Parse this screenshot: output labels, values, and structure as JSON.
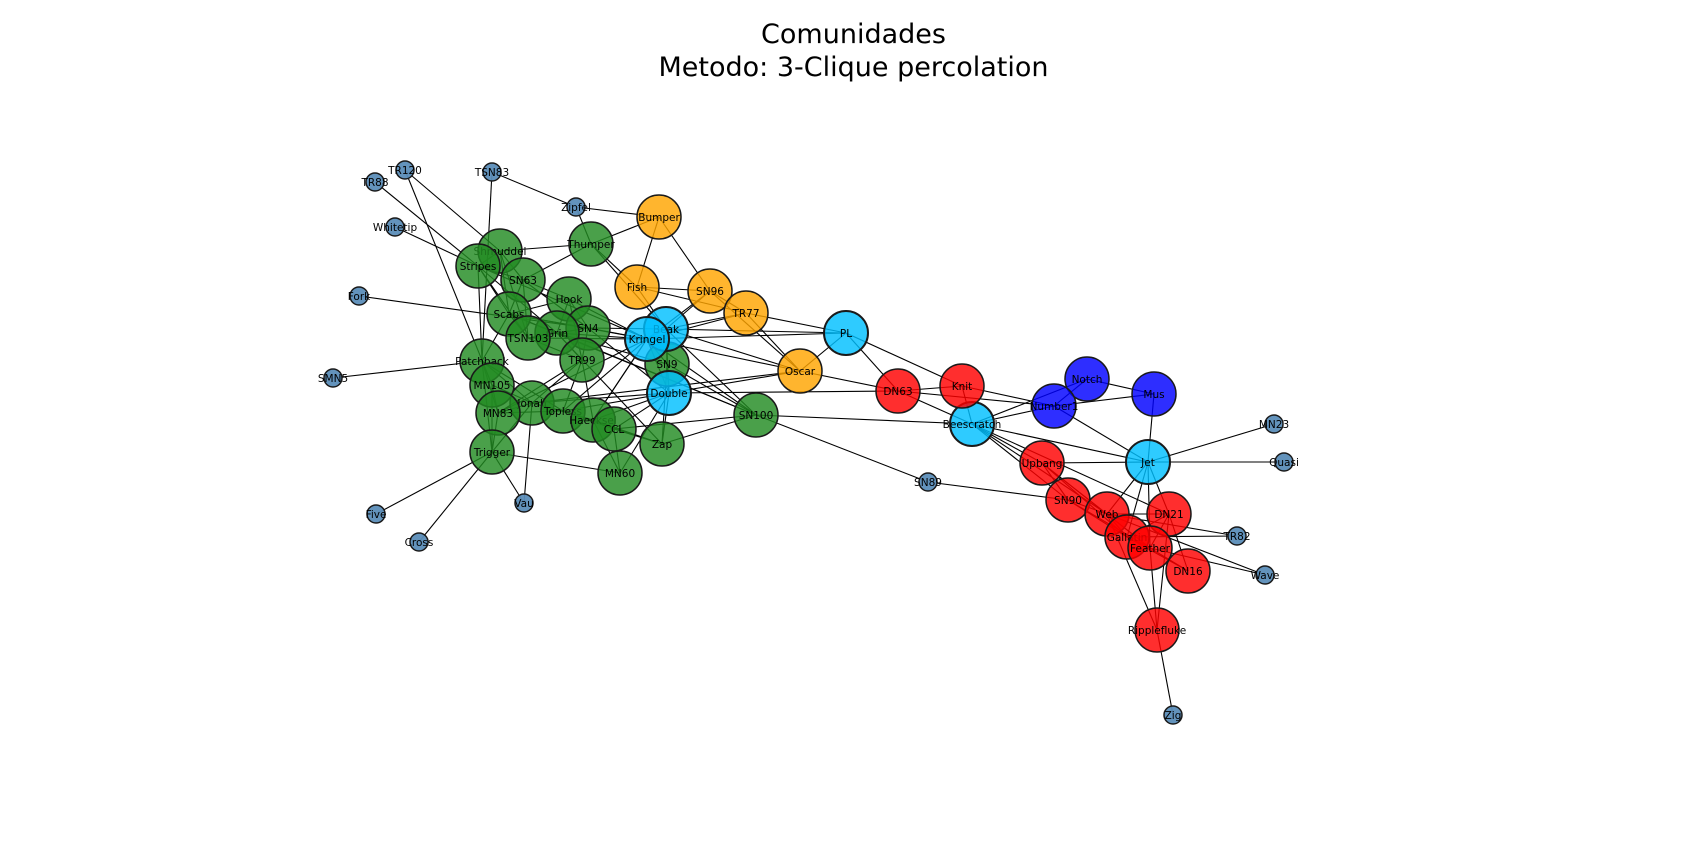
{
  "title": {
    "line1": "Comunidades",
    "line2": "Metodo: 3-Clique percolation"
  },
  "colors": {
    "community_1": "#228b22",
    "community_2": "#ffa500",
    "community_3": "#ff0000",
    "community_4": "#0000ff",
    "overlap": "#00bfff",
    "none": "#5b8db8",
    "edge": "#000000"
  },
  "nodes": [
    {
      "id": "TR120",
      "label": "TR120",
      "group": "none"
    },
    {
      "id": "TR88",
      "label": "TR88",
      "group": "none"
    },
    {
      "id": "TSN83",
      "label": "TSN83",
      "group": "none"
    },
    {
      "id": "Zipfel",
      "label": "Zipfel",
      "group": "none"
    },
    {
      "id": "Whitetip",
      "label": "Whitetip",
      "group": "none"
    },
    {
      "id": "Fork",
      "label": "Fork",
      "group": "none"
    },
    {
      "id": "SMN5",
      "label": "SMN5",
      "group": "none"
    },
    {
      "id": "Five",
      "label": "Five",
      "group": "none"
    },
    {
      "id": "Cross",
      "label": "Cross",
      "group": "none"
    },
    {
      "id": "Vau",
      "label": "Vau",
      "group": "none"
    },
    {
      "id": "SN89",
      "label": "SN89",
      "group": "none"
    },
    {
      "id": "MN23",
      "label": "MN23",
      "group": "none"
    },
    {
      "id": "Quasi",
      "label": "Quasi",
      "group": "none"
    },
    {
      "id": "TR82",
      "label": "TR82",
      "group": "none"
    },
    {
      "id": "Wave",
      "label": "Wave",
      "group": "none"
    },
    {
      "id": "Zig",
      "label": "Zig",
      "group": "none"
    },
    {
      "id": "Bumper",
      "label": "Bumper",
      "group": "community_2"
    },
    {
      "id": "Fish",
      "label": "Fish",
      "group": "community_2"
    },
    {
      "id": "SN96",
      "label": "SN96",
      "group": "community_2"
    },
    {
      "id": "TR77",
      "label": "TR77",
      "group": "community_2"
    },
    {
      "id": "Oscar",
      "label": "Oscar",
      "group": "community_2"
    },
    {
      "id": "Shmuddel",
      "label": "Shmuddel",
      "group": "community_1"
    },
    {
      "id": "Stripes",
      "label": "Stripes",
      "group": "community_1"
    },
    {
      "id": "SN63",
      "label": "SN63",
      "group": "community_1"
    },
    {
      "id": "Thumper",
      "label": "Thumper",
      "group": "community_1"
    },
    {
      "id": "Hook",
      "label": "Hook",
      "group": "community_1"
    },
    {
      "id": "Scabs",
      "label": "Scabs",
      "group": "community_1"
    },
    {
      "id": "SN4",
      "label": "SN4",
      "group": "community_1"
    },
    {
      "id": "Grin",
      "label": "Grin",
      "group": "community_1"
    },
    {
      "id": "TSN103",
      "label": "TSN103",
      "group": "community_1"
    },
    {
      "id": "TR99",
      "label": "TR99",
      "group": "community_1"
    },
    {
      "id": "Patchback",
      "label": "Patchback",
      "group": "community_1"
    },
    {
      "id": "MN105",
      "label": "MN105",
      "group": "community_1"
    },
    {
      "id": "Jonah",
      "label": "Jonah",
      "group": "community_1"
    },
    {
      "id": "MN83",
      "label": "MN83",
      "group": "community_1"
    },
    {
      "id": "Topless",
      "label": "Topless",
      "group": "community_1"
    },
    {
      "id": "Haecksel",
      "label": "Haecksel",
      "group": "community_1"
    },
    {
      "id": "CCL",
      "label": "CCL",
      "group": "community_1"
    },
    {
      "id": "SN9",
      "label": "SN9",
      "group": "community_1"
    },
    {
      "id": "Trigger",
      "label": "Trigger",
      "group": "community_1"
    },
    {
      "id": "MN60",
      "label": "MN60",
      "group": "community_1"
    },
    {
      "id": "Zap",
      "label": "Zap",
      "group": "community_1"
    },
    {
      "id": "SN100",
      "label": "SN100",
      "group": "community_1"
    },
    {
      "id": "Beak",
      "label": "Beak",
      "group": "overlap"
    },
    {
      "id": "Kringel",
      "label": "Kringel",
      "group": "overlap"
    },
    {
      "id": "Double",
      "label": "Double",
      "group": "overlap"
    },
    {
      "id": "PL",
      "label": "PL",
      "group": "overlap"
    },
    {
      "id": "Beescratch",
      "label": "Beescratch",
      "group": "overlap"
    },
    {
      "id": "Jet",
      "label": "Jet",
      "group": "overlap"
    },
    {
      "id": "DN63",
      "label": "DN63",
      "group": "community_3"
    },
    {
      "id": "Knit",
      "label": "Knit",
      "group": "community_3"
    },
    {
      "id": "Upbang",
      "label": "Upbang",
      "group": "community_3"
    },
    {
      "id": "SN90",
      "label": "SN90",
      "group": "community_3"
    },
    {
      "id": "Web",
      "label": "Web",
      "group": "community_3"
    },
    {
      "id": "DN21",
      "label": "DN21",
      "group": "community_3"
    },
    {
      "id": "Gallatin",
      "label": "Gallatin",
      "group": "community_3"
    },
    {
      "id": "Feather",
      "label": "Feather",
      "group": "community_3"
    },
    {
      "id": "DN16",
      "label": "DN16",
      "group": "community_3"
    },
    {
      "id": "Ripplefluke",
      "label": "Ripplefluke",
      "group": "community_3"
    },
    {
      "id": "Notch",
      "label": "Notch",
      "group": "community_4"
    },
    {
      "id": "Number1",
      "label": "Number1",
      "group": "community_4"
    },
    {
      "id": "Mus",
      "label": "Mus",
      "group": "community_4"
    }
  ],
  "edges": [
    [
      "TR120",
      "Shmuddel"
    ],
    [
      "TR120",
      "MN105"
    ],
    [
      "TR88",
      "Stripes"
    ],
    [
      "TSN83",
      "Zipfel"
    ],
    [
      "TSN83",
      "Patchback"
    ],
    [
      "Zipfel",
      "Bumper"
    ],
    [
      "Zipfel",
      "Thumper"
    ],
    [
      "Whitetip",
      "Stripes"
    ],
    [
      "Fork",
      "SN4"
    ],
    [
      "SMN5",
      "Patchback"
    ],
    [
      "Five",
      "Trigger"
    ],
    [
      "Cross",
      "Trigger"
    ],
    [
      "Vau",
      "Trigger"
    ],
    [
      "Vau",
      "Jonah"
    ],
    [
      "Bumper",
      "Thumper"
    ],
    [
      "Bumper",
      "Fish"
    ],
    [
      "Bumper",
      "SN96"
    ],
    [
      "Fish",
      "SN96"
    ],
    [
      "Fish",
      "TR77"
    ],
    [
      "Fish",
      "Beak"
    ],
    [
      "Fish",
      "Thumper"
    ],
    [
      "SN96",
      "TR77"
    ],
    [
      "SN96",
      "Beak"
    ],
    [
      "SN96",
      "Kringel"
    ],
    [
      "SN96",
      "Oscar"
    ],
    [
      "TR77",
      "PL"
    ],
    [
      "TR77",
      "Beak"
    ],
    [
      "TR77",
      "Kringel"
    ],
    [
      "TR77",
      "Oscar"
    ],
    [
      "Oscar",
      "PL"
    ],
    [
      "Oscar",
      "DN63"
    ],
    [
      "Oscar",
      "Jonah"
    ],
    [
      "PL",
      "DN63"
    ],
    [
      "PL",
      "Knit"
    ],
    [
      "PL",
      "Kringel"
    ],
    [
      "Shmuddel",
      "Stripes"
    ],
    [
      "Shmuddel",
      "SN63"
    ],
    [
      "Shmuddel",
      "Thumper"
    ],
    [
      "Shmuddel",
      "Scabs"
    ],
    [
      "Shmuddel",
      "TSN103"
    ],
    [
      "Stripes",
      "SN63"
    ],
    [
      "Stripes",
      "Scabs"
    ],
    [
      "Stripes",
      "Grin"
    ],
    [
      "Stripes",
      "TSN103"
    ],
    [
      "Stripes",
      "Patchback"
    ],
    [
      "Stripes",
      "Kringel"
    ],
    [
      "SN63",
      "Scabs"
    ],
    [
      "SN63",
      "TSN103"
    ],
    [
      "SN63",
      "Thumper"
    ],
    [
      "SN63",
      "SN4"
    ],
    [
      "SN63",
      "Hook"
    ],
    [
      "Scabs",
      "Grin"
    ],
    [
      "Scabs",
      "TSN103"
    ],
    [
      "Scabs",
      "SN4"
    ],
    [
      "Scabs",
      "Patchback"
    ],
    [
      "Scabs",
      "Kringel"
    ],
    [
      "Scabs",
      "Hook"
    ],
    [
      "Scabs",
      "SN100"
    ],
    [
      "Hook",
      "SN4"
    ],
    [
      "Hook",
      "TR99"
    ],
    [
      "Hook",
      "Kringel"
    ],
    [
      "Hook",
      "Grin"
    ],
    [
      "SN4",
      "Grin"
    ],
    [
      "SN4",
      "TR99"
    ],
    [
      "SN4",
      "Kringel"
    ],
    [
      "SN4",
      "Beak"
    ],
    [
      "SN4",
      "TSN103"
    ],
    [
      "SN4",
      "Double"
    ],
    [
      "Grin",
      "TSN103"
    ],
    [
      "Grin",
      "Kringel"
    ],
    [
      "Grin",
      "SN9"
    ],
    [
      "Grin",
      "Zap"
    ],
    [
      "Grin",
      "SN100"
    ],
    [
      "Grin",
      "TR99"
    ],
    [
      "TSN103",
      "Kringel"
    ],
    [
      "TSN103",
      "TR99"
    ],
    [
      "TR99",
      "Jonah"
    ],
    [
      "TR99",
      "MN83"
    ],
    [
      "TR99",
      "Haecksel"
    ],
    [
      "TR99",
      "Topless"
    ],
    [
      "Patchback",
      "MN105"
    ],
    [
      "Patchback",
      "MN83"
    ],
    [
      "Patchback",
      "Jonah"
    ],
    [
      "Patchback",
      "Topless"
    ],
    [
      "Patchback",
      "Trigger"
    ],
    [
      "MN105",
      "MN83"
    ],
    [
      "MN105",
      "Jonah"
    ],
    [
      "MN105",
      "Trigger"
    ],
    [
      "Jonah",
      "MN83"
    ],
    [
      "Jonah",
      "Topless"
    ],
    [
      "Jonah",
      "Haecksel"
    ],
    [
      "Jonah",
      "Trigger"
    ],
    [
      "Jonah",
      "Double"
    ],
    [
      "MN83",
      "Topless"
    ],
    [
      "MN83",
      "Trigger"
    ],
    [
      "MN83",
      "Kringel"
    ],
    [
      "Topless",
      "Haecksel"
    ],
    [
      "Topless",
      "CCL"
    ],
    [
      "Topless",
      "Double"
    ],
    [
      "Topless",
      "Zap"
    ],
    [
      "Topless",
      "Kringel"
    ],
    [
      "Haecksel",
      "CCL"
    ],
    [
      "Haecksel",
      "MN60"
    ],
    [
      "Haecksel",
      "Double"
    ],
    [
      "Haecksel",
      "Zap"
    ],
    [
      "Haecksel",
      "Kringel"
    ],
    [
      "CCL",
      "Double"
    ],
    [
      "CCL",
      "Zap"
    ],
    [
      "CCL",
      "MN60"
    ],
    [
      "CCL",
      "SN100"
    ],
    [
      "SN9",
      "Kringel"
    ],
    [
      "SN9",
      "Beak"
    ],
    [
      "SN9",
      "Double"
    ],
    [
      "SN9",
      "SN100"
    ],
    [
      "SN9",
      "Zap"
    ],
    [
      "Trigger",
      "MN60"
    ],
    [
      "MN60",
      "Double"
    ],
    [
      "Zap",
      "SN100"
    ],
    [
      "Zap",
      "Double"
    ],
    [
      "SN100",
      "Kringel"
    ],
    [
      "SN100",
      "Beak"
    ],
    [
      "SN100",
      "Beescratch"
    ],
    [
      "SN100",
      "SN89"
    ],
    [
      "Beak",
      "Kringel"
    ],
    [
      "Beak",
      "Double"
    ],
    [
      "Beak",
      "Oscar"
    ],
    [
      "Beak",
      "PL"
    ],
    [
      "Beak",
      "Thumper"
    ],
    [
      "Kringel",
      "Double"
    ],
    [
      "Kringel",
      "Oscar"
    ],
    [
      "Kringel",
      "Haecksel"
    ],
    [
      "Double",
      "Oscar"
    ],
    [
      "Double",
      "DN63"
    ],
    [
      "DN63",
      "Knit"
    ],
    [
      "DN63",
      "Beescratch"
    ],
    [
      "DN63",
      "Number1"
    ],
    [
      "Knit",
      "Beescratch"
    ],
    [
      "Knit",
      "Number1"
    ],
    [
      "Beescratch",
      "Number1"
    ],
    [
      "Beescratch",
      "Notch"
    ],
    [
      "Beescratch",
      "Upbang"
    ],
    [
      "Beescratch",
      "SN90"
    ],
    [
      "Beescratch",
      "Jet"
    ],
    [
      "Beescratch",
      "Web"
    ],
    [
      "Beescratch",
      "DN21"
    ],
    [
      "Notch",
      "Number1"
    ],
    [
      "Notch",
      "Mus"
    ],
    [
      "Number1",
      "Jet"
    ],
    [
      "Number1",
      "Mus"
    ],
    [
      "Mus",
      "Jet"
    ],
    [
      "Jet",
      "MN23"
    ],
    [
      "Jet",
      "Quasi"
    ],
    [
      "Jet",
      "Upbang"
    ],
    [
      "Jet",
      "Web"
    ],
    [
      "Jet",
      "DN21"
    ],
    [
      "Jet",
      "Gallatin"
    ],
    [
      "Jet",
      "Feather"
    ],
    [
      "SN89",
      "SN90"
    ],
    [
      "Upbang",
      "SN90"
    ],
    [
      "Upbang",
      "Web"
    ],
    [
      "Upbang",
      "Gallatin"
    ],
    [
      "Upbang",
      "Feather"
    ],
    [
      "SN90",
      "Web"
    ],
    [
      "SN90",
      "Gallatin"
    ],
    [
      "SN90",
      "Feather"
    ],
    [
      "Web",
      "DN21"
    ],
    [
      "Web",
      "Gallatin"
    ],
    [
      "Web",
      "Feather"
    ],
    [
      "Web",
      "Ripplefluke"
    ],
    [
      "Web",
      "Wave"
    ],
    [
      "Web",
      "TR82"
    ],
    [
      "DN21",
      "Gallatin"
    ],
    [
      "DN21",
      "Feather"
    ],
    [
      "DN21",
      "Ripplefluke"
    ],
    [
      "DN21",
      "DN16"
    ],
    [
      "Gallatin",
      "Feather"
    ],
    [
      "Gallatin",
      "DN16"
    ],
    [
      "Gallatin",
      "TR82"
    ],
    [
      "Feather",
      "DN16"
    ],
    [
      "Feather",
      "Ripplefluke"
    ],
    [
      "Feather",
      "Wave"
    ],
    [
      "Ripplefluke",
      "Zig"
    ]
  ]
}
